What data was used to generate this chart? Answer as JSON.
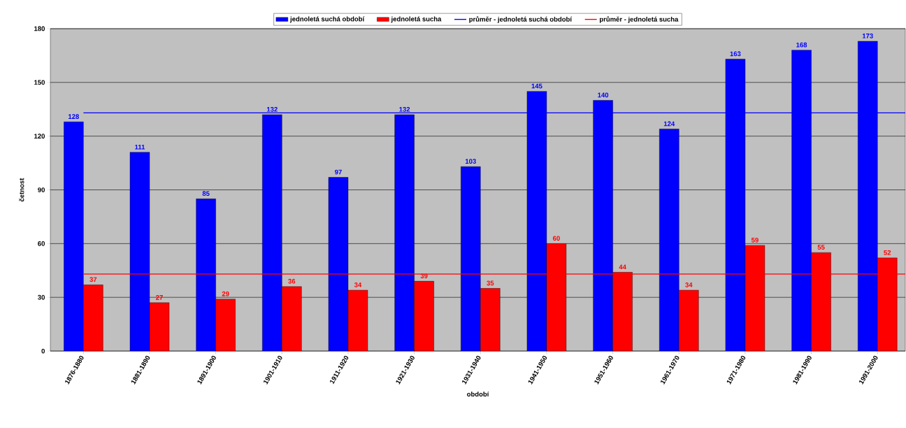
{
  "chart_data": {
    "type": "bar",
    "xlabel": "období",
    "ylabel": "četnost",
    "categories": [
      "1876-1880",
      "1881-1890",
      "1891-1900",
      "1901-1910",
      "1911-1920",
      "1921-1930",
      "1931-1940",
      "1941-1950",
      "1951-1960",
      "1961-1970",
      "1971-1980",
      "1981-1990",
      "1991-2000"
    ],
    "series": [
      {
        "name": "jednoletá suchá období",
        "color": "#0000ff",
        "values": [
          128,
          111,
          85,
          132,
          97,
          132,
          103,
          145,
          140,
          124,
          163,
          168,
          173
        ],
        "value_labels": [
          "128",
          "111",
          "85",
          "132",
          "97",
          "132",
          "103",
          "145",
          "140",
          "124",
          "163",
          "168",
          "173"
        ]
      },
      {
        "name": "jednoletá sucha",
        "color": "#ff0000",
        "values": [
          37,
          27,
          29,
          36,
          34,
          39,
          35,
          60,
          44,
          34,
          59,
          55,
          52
        ],
        "value_labels": [
          "37",
          "27",
          "29",
          "36",
          "34",
          "39",
          "35",
          "60",
          "44",
          "34",
          "59",
          "55",
          "52"
        ]
      }
    ],
    "ref_lines": [
      {
        "axis": "y",
        "value": 133,
        "label": "průměr - jednoletá suchá období",
        "color": "#0000ff",
        "line_style": "solid"
      },
      {
        "axis": "y",
        "value": 43,
        "label": "průměr - jednoletá sucha",
        "color": "#ff0000",
        "line_style": "solid"
      }
    ],
    "ylim": [
      0,
      180
    ],
    "yticks": [
      0,
      30,
      60,
      90,
      120,
      150,
      180
    ],
    "grid": "y",
    "legend": "top"
  }
}
